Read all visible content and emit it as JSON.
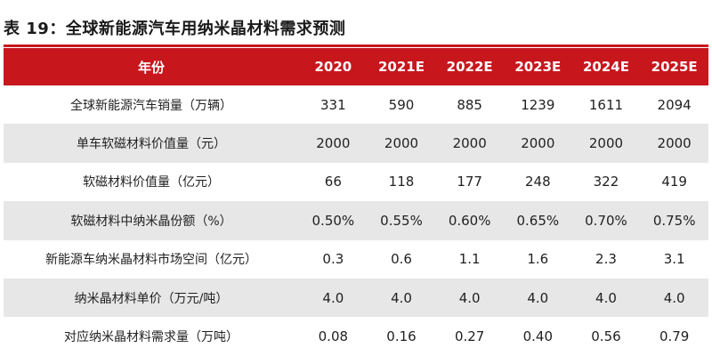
{
  "title": "表 19：全球新能源汽车用纳米晶材料需求预测",
  "header": {
    "label": "年份",
    "years": [
      "2020",
      "2021E",
      "2022E",
      "2023E",
      "2024E",
      "2025E"
    ]
  },
  "rows": [
    {
      "label": "全球新能源汽车销量（万辆）",
      "values": [
        "331",
        "590",
        "885",
        "1239",
        "1611",
        "2094"
      ]
    },
    {
      "label": "单车软磁材料价值量（元）",
      "values": [
        "2000",
        "2000",
        "2000",
        "2000",
        "2000",
        "2000"
      ]
    },
    {
      "label": "软磁材料价值量（亿元）",
      "values": [
        "66",
        "118",
        "177",
        "248",
        "322",
        "419"
      ]
    },
    {
      "label": "软磁材料中纳米晶份额（%）",
      "values": [
        "0.50%",
        "0.55%",
        "0.60%",
        "0.65%",
        "0.70%",
        "0.75%"
      ]
    },
    {
      "label": "新能源车纳米晶材料市场空间（亿元）",
      "values": [
        "0.3",
        "0.6",
        "1.1",
        "1.6",
        "2.3",
        "3.1"
      ]
    },
    {
      "label": "纳米晶材料单价（万元/吨）",
      "values": [
        "4.0",
        "4.0",
        "4.0",
        "4.0",
        "4.0",
        "4.0"
      ]
    },
    {
      "label": "对应纳米晶材料需求量（万吨）",
      "values": [
        "0.08",
        "0.16",
        "0.27",
        "0.40",
        "0.56",
        "0.79"
      ]
    }
  ],
  "colors": {
    "header_bg": "#c8161d",
    "shade_row": "#e7e7e7"
  }
}
